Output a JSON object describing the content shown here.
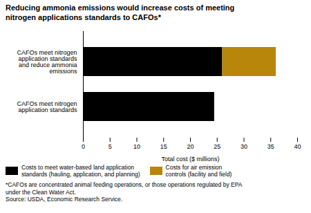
{
  "chart_data": {
    "type": "bar",
    "orientation": "horizontal",
    "stacked": true,
    "title": "Reducing ammonia emissions would increase costs of meeting\nnitrogen applications standards to CAFOs*",
    "categories": [
      "CAFOs meet nitrogen\napplication standards\nand reduce ammonia\nemissions",
      "CAFOs meet nitrogen\napplication standards"
    ],
    "series": [
      {
        "name": "Costs to meet water-based land application\nstandards (hauling, application, and planning)",
        "color": "#000000",
        "values": [
          26.0,
          24.5
        ]
      },
      {
        "name": "Costs for air emission\ncontrols (facility and field)",
        "color": "#b8860b",
        "values": [
          10.0,
          0.0
        ]
      }
    ],
    "xlim": [
      0,
      40
    ],
    "xticks": [
      0,
      5,
      10,
      15,
      20,
      25,
      30,
      35,
      40
    ],
    "xlabel": "Total cost ($ millions)",
    "legend": "bottom",
    "footnotes": [
      "*CAFOs are concentrated animal feeding operations, or those operations regulated by EPA",
      "under the Clean Water Act."
    ],
    "source": "Source: USDA, Economic Research Service."
  }
}
